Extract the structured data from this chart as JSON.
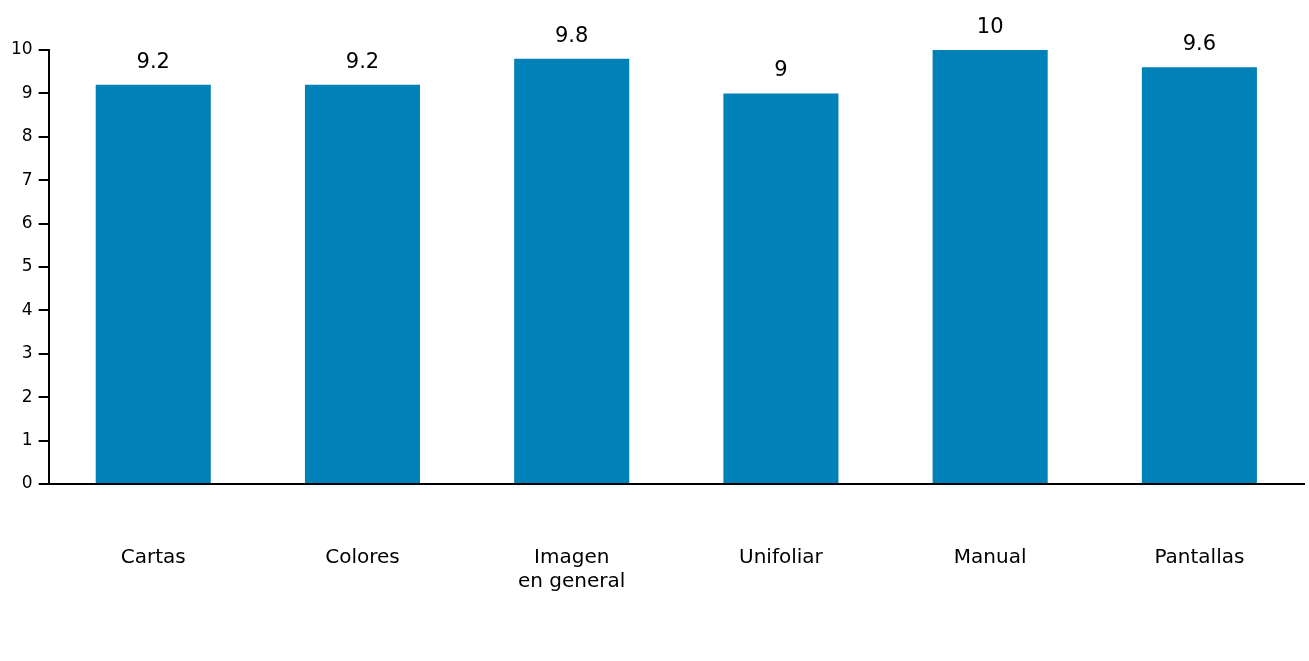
{
  "chart_data": {
    "type": "bar",
    "categories": [
      "Cartas",
      "Colores",
      "Imagen en general",
      "Unifoliar",
      "Manual",
      "Pantallas"
    ],
    "values": [
      9.2,
      9.2,
      9.8,
      9,
      10,
      9.6
    ],
    "color": "#0081b8",
    "ylim": [
      0,
      10
    ],
    "yticks": [
      0,
      1,
      2,
      3,
      4,
      5,
      6,
      7,
      8,
      9,
      10
    ],
    "grid": false,
    "legend": false,
    "data_labels": true
  }
}
